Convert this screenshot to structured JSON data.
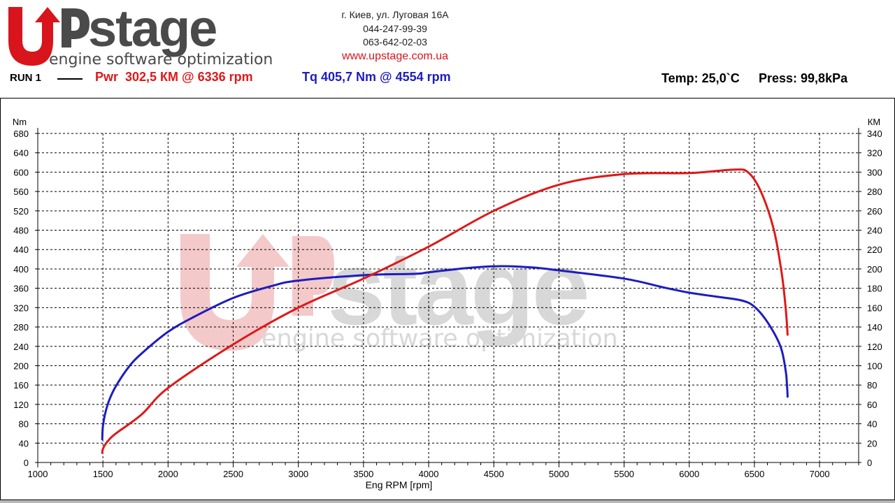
{
  "brand": {
    "name_up": "UP",
    "name_stage": "stage",
    "tagline": "engine software optimization"
  },
  "contact": {
    "address": "г. Киев, ул. Луговая 16А",
    "phone1": "044-247-99-39",
    "phone2": "063-642-02-03",
    "website": "www.upstage.com.ua"
  },
  "run": {
    "label": "RUN 1",
    "power_summary": "Pwr  302,5 КМ @ 6336 rpm",
    "torque_summary": "Tq 405,7 Nm @ 4554 rpm"
  },
  "conditions": {
    "temp": "Temp: 25,0`C",
    "press": "Press: 99,8kPa"
  },
  "colors": {
    "power": "#e01818",
    "torque": "#1d1dbf",
    "brand_red": "#d8141c",
    "watermark_red": "#f4c9c9",
    "watermark_gray": "#d8d8d8"
  },
  "chart_data": {
    "type": "line",
    "xlabel": "Eng RPM [rpm]",
    "ylabel_left": "Nm",
    "ylabel_right": "КМ",
    "xlim": [
      1000,
      7300
    ],
    "ylim_left": [
      0,
      680
    ],
    "ylim_right": [
      0,
      340
    ],
    "xticks": [
      1000,
      1500,
      2000,
      2500,
      3000,
      3500,
      4000,
      4500,
      5000,
      5500,
      6000,
      6500,
      7000
    ],
    "yticks_left": [
      0,
      40,
      80,
      120,
      160,
      200,
      240,
      280,
      320,
      360,
      400,
      440,
      480,
      520,
      560,
      600,
      640,
      680
    ],
    "yticks_right": [
      0,
      20,
      40,
      60,
      80,
      100,
      120,
      140,
      160,
      180,
      200,
      220,
      240,
      260,
      280,
      300,
      320,
      340
    ],
    "grid": true,
    "series": [
      {
        "name": "Tq",
        "axis": "left",
        "color": "#1d1dbf",
        "points": [
          [
            1495,
            48
          ],
          [
            1500,
            75
          ],
          [
            1520,
            104
          ],
          [
            1550,
            130
          ],
          [
            1600,
            158
          ],
          [
            1700,
            198
          ],
          [
            1800,
            226
          ],
          [
            2000,
            270
          ],
          [
            2200,
            301
          ],
          [
            2500,
            340
          ],
          [
            2800,
            365
          ],
          [
            3000,
            376
          ],
          [
            3500,
            387
          ],
          [
            3900,
            390
          ],
          [
            4000,
            393
          ],
          [
            4300,
            402
          ],
          [
            4554,
            405.7
          ],
          [
            4800,
            403
          ],
          [
            5000,
            397
          ],
          [
            5500,
            380
          ],
          [
            5800,
            362
          ],
          [
            6000,
            351
          ],
          [
            6200,
            343
          ],
          [
            6400,
            335
          ],
          [
            6500,
            322
          ],
          [
            6600,
            290
          ],
          [
            6700,
            240
          ],
          [
            6740,
            190
          ],
          [
            6750,
            160
          ],
          [
            6755,
            136
          ]
        ]
      },
      {
        "name": "Pwr",
        "axis": "right",
        "color": "#e01818",
        "points": [
          [
            1495,
            10
          ],
          [
            1500,
            14
          ],
          [
            1520,
            19
          ],
          [
            1550,
            24
          ],
          [
            1600,
            30
          ],
          [
            1800,
            50
          ],
          [
            2000,
            77
          ],
          [
            2500,
            122
          ],
          [
            3000,
            160
          ],
          [
            3500,
            190
          ],
          [
            4000,
            223
          ],
          [
            4500,
            260
          ],
          [
            5000,
            287
          ],
          [
            5500,
            298
          ],
          [
            6000,
            299
          ],
          [
            6336,
            302.5
          ],
          [
            6450,
            300
          ],
          [
            6550,
            280
          ],
          [
            6650,
            240
          ],
          [
            6710,
            195
          ],
          [
            6740,
            160
          ],
          [
            6755,
            132
          ]
        ]
      }
    ]
  }
}
